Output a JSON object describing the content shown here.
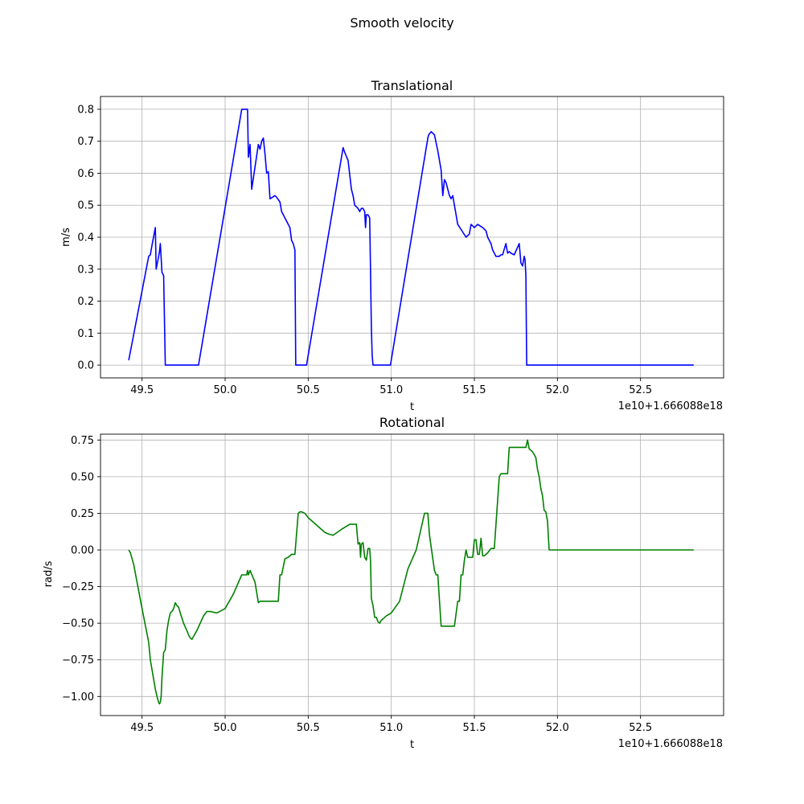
{
  "figure": {
    "title": "Smooth velocity"
  },
  "chart_data": [
    {
      "type": "line",
      "title": "Translational",
      "xlabel": "t",
      "ylabel": "m/s",
      "offset_label": "1e10+1.666088e18",
      "xlim": [
        49.25,
        53.0
      ],
      "ylim": [
        -0.04,
        0.84
      ],
      "xticks": [
        49.5,
        50.0,
        50.5,
        51.0,
        51.5,
        52.0,
        52.5
      ],
      "xtick_labels": [
        "49.5",
        "50.0",
        "50.5",
        "51.0",
        "51.5",
        "52.0",
        "52.5"
      ],
      "yticks": [
        0.0,
        0.1,
        0.2,
        0.3,
        0.4,
        0.5,
        0.6,
        0.7,
        0.8
      ],
      "ytick_labels": [
        "0.0",
        "0.1",
        "0.2",
        "0.3",
        "0.4",
        "0.5",
        "0.6",
        "0.7",
        "0.8"
      ],
      "grid": true,
      "color": "#0000ff",
      "x": [
        49.42,
        49.54,
        49.55,
        49.56,
        49.58,
        49.585,
        49.6,
        49.605,
        49.61,
        49.62,
        49.63,
        49.64,
        49.84,
        50.1,
        50.135,
        50.14,
        50.15,
        50.16,
        50.2,
        50.21,
        50.22,
        50.23,
        50.24,
        50.25,
        50.26,
        50.27,
        50.3,
        50.31,
        50.33,
        50.34,
        50.36,
        50.39,
        50.4,
        50.41,
        50.42,
        50.425,
        50.44,
        50.49,
        50.71,
        50.72,
        50.74,
        50.76,
        50.77,
        50.78,
        50.8,
        50.81,
        50.82,
        50.83,
        50.84,
        50.845,
        50.85,
        50.86,
        50.87,
        50.875,
        50.88,
        50.885,
        50.89,
        50.9,
        50.995,
        51.22,
        51.225,
        51.24,
        51.26,
        51.28,
        51.3,
        51.31,
        51.32,
        51.33,
        51.34,
        51.35,
        51.36,
        51.37,
        51.38,
        51.39,
        51.4,
        51.45,
        51.47,
        51.48,
        51.5,
        51.52,
        51.55,
        51.57,
        51.58,
        51.6,
        51.61,
        51.63,
        51.64,
        51.65,
        51.66,
        51.67,
        51.69,
        51.7,
        51.71,
        51.72,
        51.74,
        51.77,
        51.78,
        51.79,
        51.8,
        51.805,
        51.81,
        51.815,
        51.82,
        51.83,
        51.84,
        52.82
      ],
      "y": [
        0.015,
        0.34,
        0.345,
        0.375,
        0.43,
        0.3,
        0.34,
        0.355,
        0.38,
        0.29,
        0.28,
        0.0,
        0.0,
        0.8,
        0.8,
        0.65,
        0.69,
        0.55,
        0.69,
        0.675,
        0.7,
        0.71,
        0.66,
        0.6,
        0.605,
        0.52,
        0.53,
        0.525,
        0.51,
        0.48,
        0.46,
        0.43,
        0.39,
        0.38,
        0.36,
        0.0,
        0.0,
        0.0,
        0.68,
        0.665,
        0.64,
        0.55,
        0.53,
        0.5,
        0.49,
        0.48,
        0.49,
        0.49,
        0.48,
        0.43,
        0.47,
        0.47,
        0.46,
        0.3,
        0.12,
        0.03,
        0.0,
        0.0,
        0.0,
        0.71,
        0.72,
        0.73,
        0.72,
        0.67,
        0.61,
        0.53,
        0.58,
        0.57,
        0.55,
        0.53,
        0.52,
        0.53,
        0.5,
        0.47,
        0.44,
        0.4,
        0.41,
        0.44,
        0.43,
        0.44,
        0.43,
        0.42,
        0.4,
        0.38,
        0.36,
        0.34,
        0.34,
        0.34,
        0.345,
        0.345,
        0.38,
        0.35,
        0.355,
        0.35,
        0.345,
        0.38,
        0.32,
        0.31,
        0.34,
        0.33,
        0.28,
        0.0,
        0.0,
        0.0,
        0.0,
        0.0
      ]
    },
    {
      "type": "line",
      "title": "Rotational",
      "xlabel": "t",
      "ylabel": "rad/s",
      "offset_label": "1e10+1.666088e18",
      "xlim": [
        49.25,
        53.0
      ],
      "ylim": [
        -1.13,
        0.79
      ],
      "xticks": [
        49.5,
        50.0,
        50.5,
        51.0,
        51.5,
        52.0,
        52.5
      ],
      "xtick_labels": [
        "49.5",
        "50.0",
        "50.5",
        "51.0",
        "51.5",
        "52.0",
        "52.5"
      ],
      "yticks": [
        -1.0,
        -0.75,
        -0.5,
        -0.25,
        0.0,
        0.25,
        0.5,
        0.75
      ],
      "ytick_labels": [
        "−1.00",
        "−0.75",
        "−0.50",
        "−0.25",
        "0.00",
        "0.25",
        "0.50",
        "0.75"
      ],
      "grid": true,
      "color": "#008000",
      "x": [
        49.42,
        49.43,
        49.45,
        49.5,
        49.54,
        49.55,
        49.58,
        49.59,
        49.6,
        49.605,
        49.61,
        49.615,
        49.62,
        49.63,
        49.64,
        49.65,
        49.66,
        49.67,
        49.68,
        49.69,
        49.7,
        49.71,
        49.72,
        49.73,
        49.75,
        49.77,
        49.78,
        49.79,
        49.8,
        49.82,
        49.83,
        49.85,
        49.87,
        49.89,
        49.91,
        49.95,
        50.0,
        50.05,
        50.1,
        50.13,
        50.135,
        50.14,
        50.15,
        50.18,
        50.2,
        50.21,
        50.22,
        50.25,
        50.27,
        50.28,
        50.3,
        50.32,
        50.33,
        50.34,
        50.36,
        50.38,
        50.4,
        50.42,
        50.44,
        50.45,
        50.46,
        50.48,
        50.5,
        50.55,
        50.6,
        50.62,
        50.65,
        50.7,
        50.75,
        50.78,
        50.79,
        50.8,
        50.81,
        50.815,
        50.82,
        50.83,
        50.84,
        50.85,
        50.86,
        50.87,
        50.875,
        50.88,
        50.89,
        50.9,
        50.91,
        50.92,
        50.93,
        50.94,
        50.95,
        50.97,
        51.0,
        51.05,
        51.1,
        51.15,
        51.2,
        51.22,
        51.23,
        51.26,
        51.27,
        51.28,
        51.3,
        51.34,
        51.38,
        51.4,
        51.41,
        51.42,
        51.43,
        51.44,
        51.45,
        51.46,
        51.47,
        51.48,
        51.49,
        51.5,
        51.51,
        51.52,
        51.53,
        51.54,
        51.55,
        51.56,
        51.57,
        51.58,
        51.6,
        51.62,
        51.65,
        51.66,
        51.7,
        51.71,
        51.73,
        51.75,
        51.8,
        51.81,
        51.82,
        51.83,
        51.84,
        51.85,
        51.86,
        51.87,
        51.88,
        51.89,
        51.9,
        51.91,
        51.92,
        51.93,
        51.94,
        51.95,
        52.0,
        52.82
      ],
      "y": [
        0.0,
        -0.02,
        -0.1,
        -0.4,
        -0.63,
        -0.75,
        -0.95,
        -1.0,
        -1.04,
        -1.05,
        -1.04,
        -1.0,
        -0.87,
        -0.7,
        -0.68,
        -0.55,
        -0.48,
        -0.43,
        -0.42,
        -0.4,
        -0.36,
        -0.38,
        -0.39,
        -0.43,
        -0.5,
        -0.55,
        -0.58,
        -0.6,
        -0.61,
        -0.57,
        -0.55,
        -0.5,
        -0.45,
        -0.42,
        -0.42,
        -0.43,
        -0.4,
        -0.3,
        -0.17,
        -0.17,
        -0.14,
        -0.17,
        -0.14,
        -0.22,
        -0.36,
        -0.35,
        -0.35,
        -0.35,
        -0.35,
        -0.35,
        -0.35,
        -0.35,
        -0.17,
        -0.17,
        -0.06,
        -0.05,
        -0.03,
        -0.03,
        0.25,
        0.26,
        0.26,
        0.25,
        0.22,
        0.17,
        0.12,
        0.11,
        0.1,
        0.14,
        0.175,
        0.175,
        0.175,
        0.04,
        0.05,
        -0.05,
        0.04,
        0.05,
        -0.05,
        -0.07,
        0.01,
        0.01,
        -0.07,
        -0.33,
        -0.38,
        -0.46,
        -0.46,
        -0.49,
        -0.5,
        -0.48,
        -0.47,
        -0.45,
        -0.43,
        -0.35,
        -0.13,
        0.0,
        0.25,
        0.25,
        0.1,
        -0.14,
        -0.17,
        -0.17,
        -0.52,
        -0.52,
        -0.52,
        -0.35,
        -0.35,
        -0.17,
        -0.17,
        -0.07,
        0.0,
        -0.05,
        -0.05,
        -0.05,
        -0.05,
        0.07,
        0.07,
        -0.03,
        -0.03,
        0.08,
        -0.04,
        -0.04,
        -0.03,
        -0.02,
        0.01,
        0.01,
        0.5,
        0.52,
        0.52,
        0.7,
        0.7,
        0.7,
        0.7,
        0.7,
        0.75,
        0.69,
        0.68,
        0.67,
        0.65,
        0.63,
        0.55,
        0.5,
        0.42,
        0.37,
        0.27,
        0.26,
        0.2,
        0.0,
        0.0,
        0.0
      ]
    }
  ]
}
